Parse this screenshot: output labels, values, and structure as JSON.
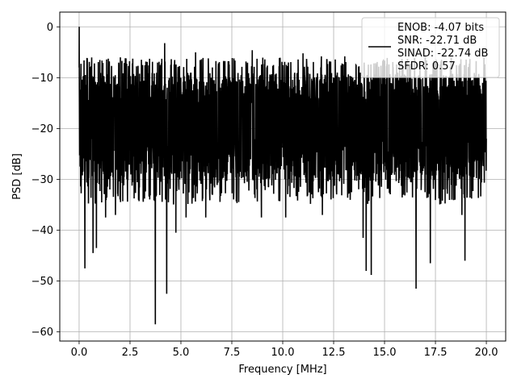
{
  "chart_data": {
    "type": "line",
    "title": "",
    "xlabel": "Frequency [MHz]",
    "ylabel": "PSD [dB]",
    "xlim": [
      -0.95,
      20.95
    ],
    "ylim": [
      -61.8,
      2.9
    ],
    "x_ticks": [
      0.0,
      2.5,
      5.0,
      7.5,
      10.0,
      12.5,
      15.0,
      17.5,
      20.0
    ],
    "x_tick_labels": [
      "0.0",
      "2.5",
      "5.0",
      "7.5",
      "10.0",
      "12.5",
      "15.0",
      "17.5",
      "20.0"
    ],
    "y_ticks": [
      0,
      -10,
      -20,
      -30,
      -40,
      -50,
      -60
    ],
    "y_tick_labels": [
      "0",
      "−10",
      "−20",
      "−30",
      "−40",
      "−50",
      "−60"
    ],
    "grid": true,
    "legend_position": "top-right",
    "series": [
      {
        "name": "ENOB: -4.07 bits\nSNR: -22.71 dB\nSINAD: -22.74 dB\nSFDR: 0.57",
        "color": "#000000",
        "x_range": [
          0.0,
          20.0
        ],
        "noise_band_db": [
          -30,
          -9
        ],
        "peak_db": 0.0,
        "deep_dips": [
          {
            "x": 0.28,
            "y": -47.5
          },
          {
            "x": 0.68,
            "y": -44.5
          },
          {
            "x": 0.85,
            "y": -43.5
          },
          {
            "x": 1.3,
            "y": -37.5
          },
          {
            "x": 1.78,
            "y": -37.0
          },
          {
            "x": 3.74,
            "y": -58.5
          },
          {
            "x": 4.3,
            "y": -52.5
          },
          {
            "x": 4.75,
            "y": -40.5
          },
          {
            "x": 5.25,
            "y": -37.5
          },
          {
            "x": 6.22,
            "y": -37.5
          },
          {
            "x": 8.95,
            "y": -37.5
          },
          {
            "x": 10.15,
            "y": -37.5
          },
          {
            "x": 11.95,
            "y": -37.0
          },
          {
            "x": 13.95,
            "y": -41.5
          },
          {
            "x": 14.1,
            "y": -48.0
          },
          {
            "x": 14.35,
            "y": -48.8
          },
          {
            "x": 16.55,
            "y": -51.5
          },
          {
            "x": 17.25,
            "y": -46.5
          },
          {
            "x": 18.8,
            "y": -37.0
          },
          {
            "x": 18.95,
            "y": -46.0
          }
        ],
        "tall_spikes": [
          {
            "x": 4.2,
            "y": -3.2
          },
          {
            "x": 5.72,
            "y": -5.0
          },
          {
            "x": 8.5,
            "y": -4.6
          },
          {
            "x": 11.0,
            "y": -5.2
          },
          {
            "x": 11.9,
            "y": -5.8
          },
          {
            "x": 13.05,
            "y": -5.8
          },
          {
            "x": 17.0,
            "y": -5.9
          }
        ]
      }
    ]
  }
}
